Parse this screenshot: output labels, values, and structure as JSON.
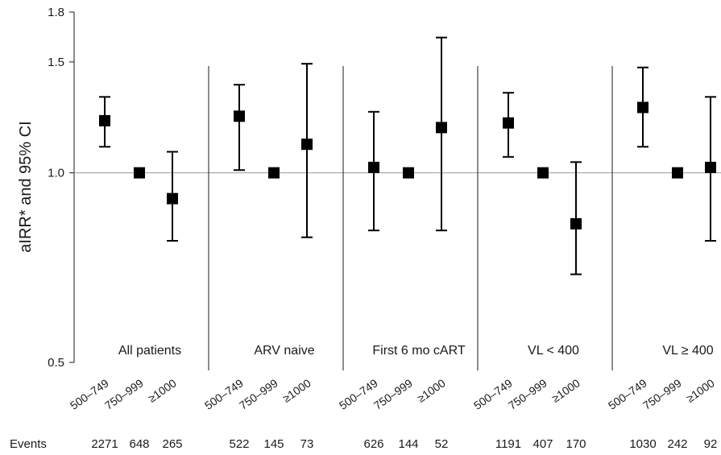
{
  "chart_data": {
    "type": "scatter",
    "title": "",
    "ylabel": "aIRR* and 95% CI",
    "yscale": "log",
    "ylim": [
      0.5,
      1.8
    ],
    "yticks": [
      {
        "value": 0.5,
        "label": "0.5"
      },
      {
        "value": 1.0,
        "label": "1.0"
      },
      {
        "value": 1.5,
        "label": "1.5"
      },
      {
        "value": 1.8,
        "label": "1.8"
      }
    ],
    "reference_line": 1.0,
    "row_label": "Events",
    "categories": [
      "500–749",
      "750–999",
      "≥1000"
    ],
    "groups": [
      {
        "name": "All patients",
        "points": [
          {
            "est": 1.21,
            "lo": 1.1,
            "hi": 1.32
          },
          {
            "est": 1.0,
            "lo": 1.0,
            "hi": 1.0
          },
          {
            "est": 0.91,
            "lo": 0.78,
            "hi": 1.08
          }
        ],
        "events": [
          "2271",
          "648",
          "265"
        ]
      },
      {
        "name": "ARV naive",
        "points": [
          {
            "est": 1.23,
            "lo": 1.01,
            "hi": 1.38
          },
          {
            "est": 1.0,
            "lo": 1.0,
            "hi": 1.0
          },
          {
            "est": 1.11,
            "lo": 0.79,
            "hi": 1.49
          }
        ],
        "events": [
          "522",
          "145",
          "73"
        ]
      },
      {
        "name": "First 6 mo cART",
        "points": [
          {
            "est": 1.02,
            "lo": 0.81,
            "hi": 1.25
          },
          {
            "est": 1.0,
            "lo": 1.0,
            "hi": 1.0
          },
          {
            "est": 1.18,
            "lo": 0.81,
            "hi": 1.64
          }
        ],
        "events": [
          "626",
          "144",
          "52"
        ]
      },
      {
        "name": "VL < 400",
        "points": [
          {
            "est": 1.2,
            "lo": 1.06,
            "hi": 1.34
          },
          {
            "est": 1.0,
            "lo": 1.0,
            "hi": 1.0
          },
          {
            "est": 0.83,
            "lo": 0.69,
            "hi": 1.04
          }
        ],
        "events": [
          "1191",
          "407",
          "170"
        ]
      },
      {
        "name": "VL ≥ 400",
        "points": [
          {
            "est": 1.27,
            "lo": 1.1,
            "hi": 1.47
          },
          {
            "est": 1.0,
            "lo": 1.0,
            "hi": 1.0
          },
          {
            "est": 1.02,
            "lo": 0.78,
            "hi": 1.32
          }
        ],
        "events": [
          "1030",
          "242",
          "92"
        ]
      }
    ],
    "grid": false,
    "legend": "none",
    "colors": {
      "marker": "#000000",
      "axis": "#1a1a1a",
      "refline": "#999999"
    }
  }
}
